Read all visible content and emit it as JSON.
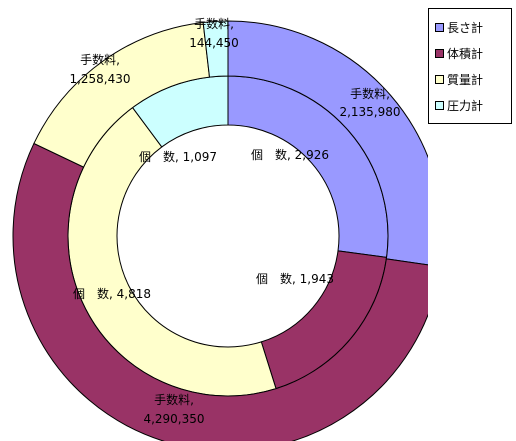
{
  "chart_data": {
    "type": "pie",
    "subtype": "doughnut",
    "title": "",
    "rings": [
      {
        "name": "",
        "label_name": "個　数",
        "values": [
          2926,
          1943,
          4818,
          1097
        ],
        "value_labels": [
          "2,926",
          "1,943",
          "4,818",
          "1,097"
        ]
      },
      {
        "name": "",
        "label_name": "手数料",
        "values": [
          2135980,
          4290350,
          1258430,
          144450
        ],
        "value_labels": [
          "2,135,980",
          "4,290,350",
          "1,258,430",
          "144,450"
        ]
      }
    ],
    "categories": [
      "長さ計",
      "体積計",
      "質量計",
      "圧力計"
    ],
    "colors": [
      "#9999ff",
      "#993366",
      "#ffffcc",
      "#ccffff"
    ],
    "legend": {
      "placement": "top-right",
      "items": [
        "長さ計",
        "体積計",
        "質量計",
        "圧力計"
      ]
    }
  }
}
